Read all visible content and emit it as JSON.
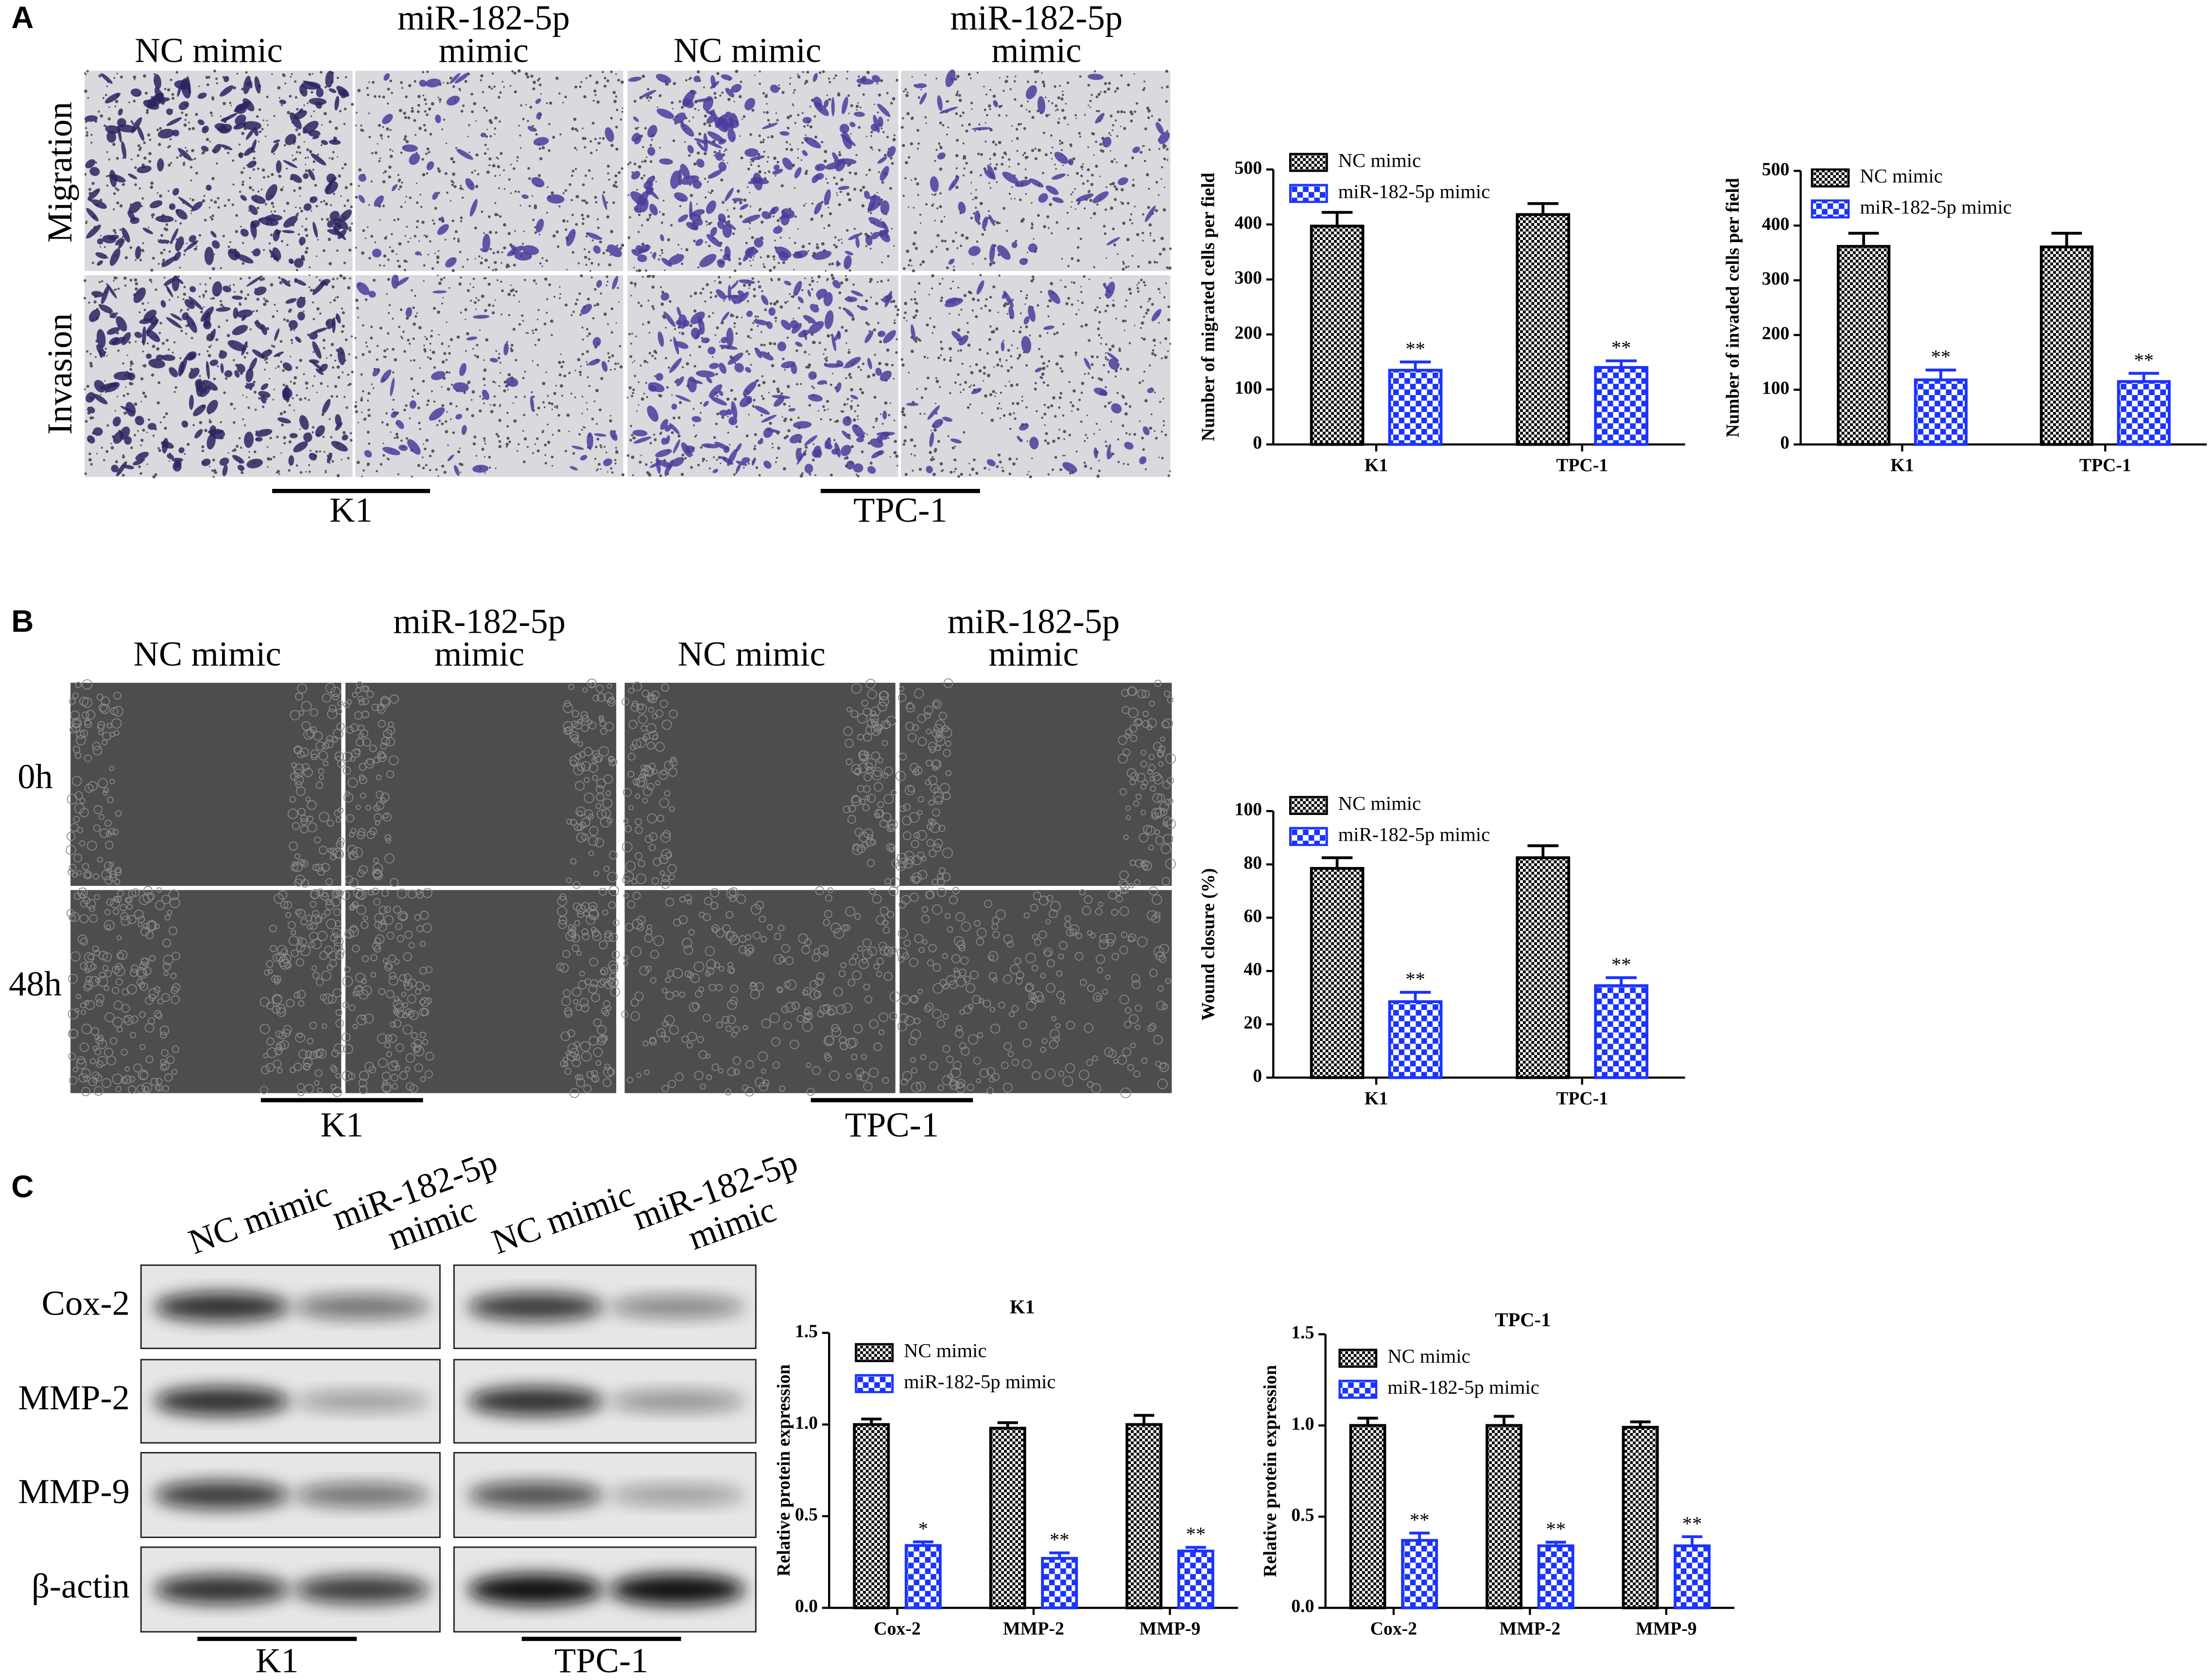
{
  "panel_labels": [
    "A",
    "B",
    "C"
  ],
  "panel_a": {
    "col_labels": [
      [
        "NC mimic"
      ],
      [
        "miR-182-5p",
        "mimic"
      ],
      [
        "NC mimic"
      ],
      [
        "miR-182-5p",
        "mimic"
      ]
    ],
    "row_labels": [
      "Migration",
      "Invasion"
    ],
    "groups": [
      "K1",
      "TPC-1"
    ]
  },
  "panel_b": {
    "col_labels": [
      [
        "NC mimic"
      ],
      [
        "miR-182-5p",
        "mimic"
      ],
      [
        "NC mimic"
      ],
      [
        "miR-182-5p",
        "mimic"
      ]
    ],
    "row_labels": [
      "0h",
      "48h"
    ],
    "groups": [
      "K1",
      "TPC-1"
    ]
  },
  "panel_c": {
    "col_labels": [
      [
        "NC mimic"
      ],
      [
        "miR-182-5p",
        "mimic"
      ],
      [
        "NC mimic"
      ],
      [
        "miR-182-5p",
        "mimic"
      ]
    ],
    "row_labels": [
      "Cox-2",
      "MMP-2",
      "MMP-9",
      "β-actin"
    ],
    "groups": [
      "K1",
      "TPC-1"
    ]
  },
  "chart_data": [
    {
      "type": "bar",
      "y_label": "Number of migrated cells per field",
      "categories": [
        "K1",
        "TPC-1"
      ],
      "series": [
        {
          "name": "NC mimic",
          "color": "#000000",
          "values": [
            397,
            418
          ],
          "errors": [
            25,
            20
          ]
        },
        {
          "name": "miR-182-5p mimic",
          "color": "#1a33ff",
          "values": [
            135,
            140
          ],
          "errors": [
            15,
            12
          ],
          "significance": [
            "**",
            "**"
          ]
        }
      ],
      "ylim": [
        0,
        500
      ],
      "yticks": [
        0,
        100,
        200,
        300,
        400,
        500
      ],
      "legend": "top-left"
    },
    {
      "type": "bar",
      "y_label": "Number of invaded cells per field",
      "categories": [
        "K1",
        "TPC-1"
      ],
      "series": [
        {
          "name": "NC mimic",
          "color": "#000000",
          "values": [
            362,
            361
          ],
          "errors": [
            24,
            25
          ]
        },
        {
          "name": "miR-182-5p mimic",
          "color": "#1a33ff",
          "values": [
            118,
            115
          ],
          "errors": [
            18,
            15
          ],
          "significance": [
            "**",
            "**"
          ]
        }
      ],
      "ylim": [
        0,
        500
      ],
      "yticks": [
        0,
        100,
        200,
        300,
        400,
        500
      ],
      "legend": "top-left"
    },
    {
      "type": "bar",
      "y_label": "Wound closure (%)",
      "categories": [
        "K1",
        "TPC-1"
      ],
      "series": [
        {
          "name": "NC mimic",
          "color": "#000000",
          "values": [
            78.5,
            82.5
          ],
          "errors": [
            4,
            4.5
          ]
        },
        {
          "name": "miR-182-5p mimic",
          "color": "#1a33ff",
          "values": [
            28.5,
            34.5
          ],
          "errors": [
            3.5,
            3
          ],
          "significance": [
            "**",
            "**"
          ]
        }
      ],
      "ylim": [
        0,
        100
      ],
      "yticks": [
        0,
        20,
        40,
        60,
        80,
        100
      ],
      "legend": "top-left"
    },
    {
      "type": "bar",
      "title": "K1",
      "y_label": "Relative protein expression",
      "categories": [
        "Cox-2",
        "MMP-2",
        "MMP-9"
      ],
      "series": [
        {
          "name": "NC mimic",
          "color": "#000000",
          "values": [
            1.0,
            0.98,
            1.0
          ],
          "errors": [
            0.03,
            0.03,
            0.05
          ]
        },
        {
          "name": "miR-182-5p mimic",
          "color": "#1a33ff",
          "values": [
            0.34,
            0.27,
            0.31
          ],
          "errors": [
            0.02,
            0.03,
            0.02
          ],
          "significance": [
            "*",
            "**",
            "**"
          ]
        }
      ],
      "ylim": [
        0,
        1.5
      ],
      "yticks": [
        {
          "value": 0,
          "label": "0.0"
        },
        0.5,
        {
          "value": 1,
          "label": "1.0"
        },
        1.5
      ],
      "legend": "top-left"
    },
    {
      "type": "bar",
      "title": "TPC-1",
      "y_label": "Relative protein expression",
      "categories": [
        "Cox-2",
        "MMP-2",
        "MMP-9"
      ],
      "series": [
        {
          "name": "NC mimic",
          "color": "#000000",
          "values": [
            1.0,
            1.0,
            0.99
          ],
          "errors": [
            0.04,
            0.05,
            0.03
          ]
        },
        {
          "name": "miR-182-5p mimic",
          "color": "#1a33ff",
          "values": [
            0.37,
            0.34,
            0.34
          ],
          "errors": [
            0.04,
            0.02,
            0.05
          ],
          "significance": [
            "**",
            "**",
            "**"
          ]
        }
      ],
      "ylim": [
        0,
        1.5
      ],
      "yticks": [
        {
          "value": 0,
          "label": "0.0"
        },
        0.5,
        {
          "value": 1,
          "label": "1.0"
        },
        1.5
      ],
      "legend": "top-left"
    }
  ]
}
